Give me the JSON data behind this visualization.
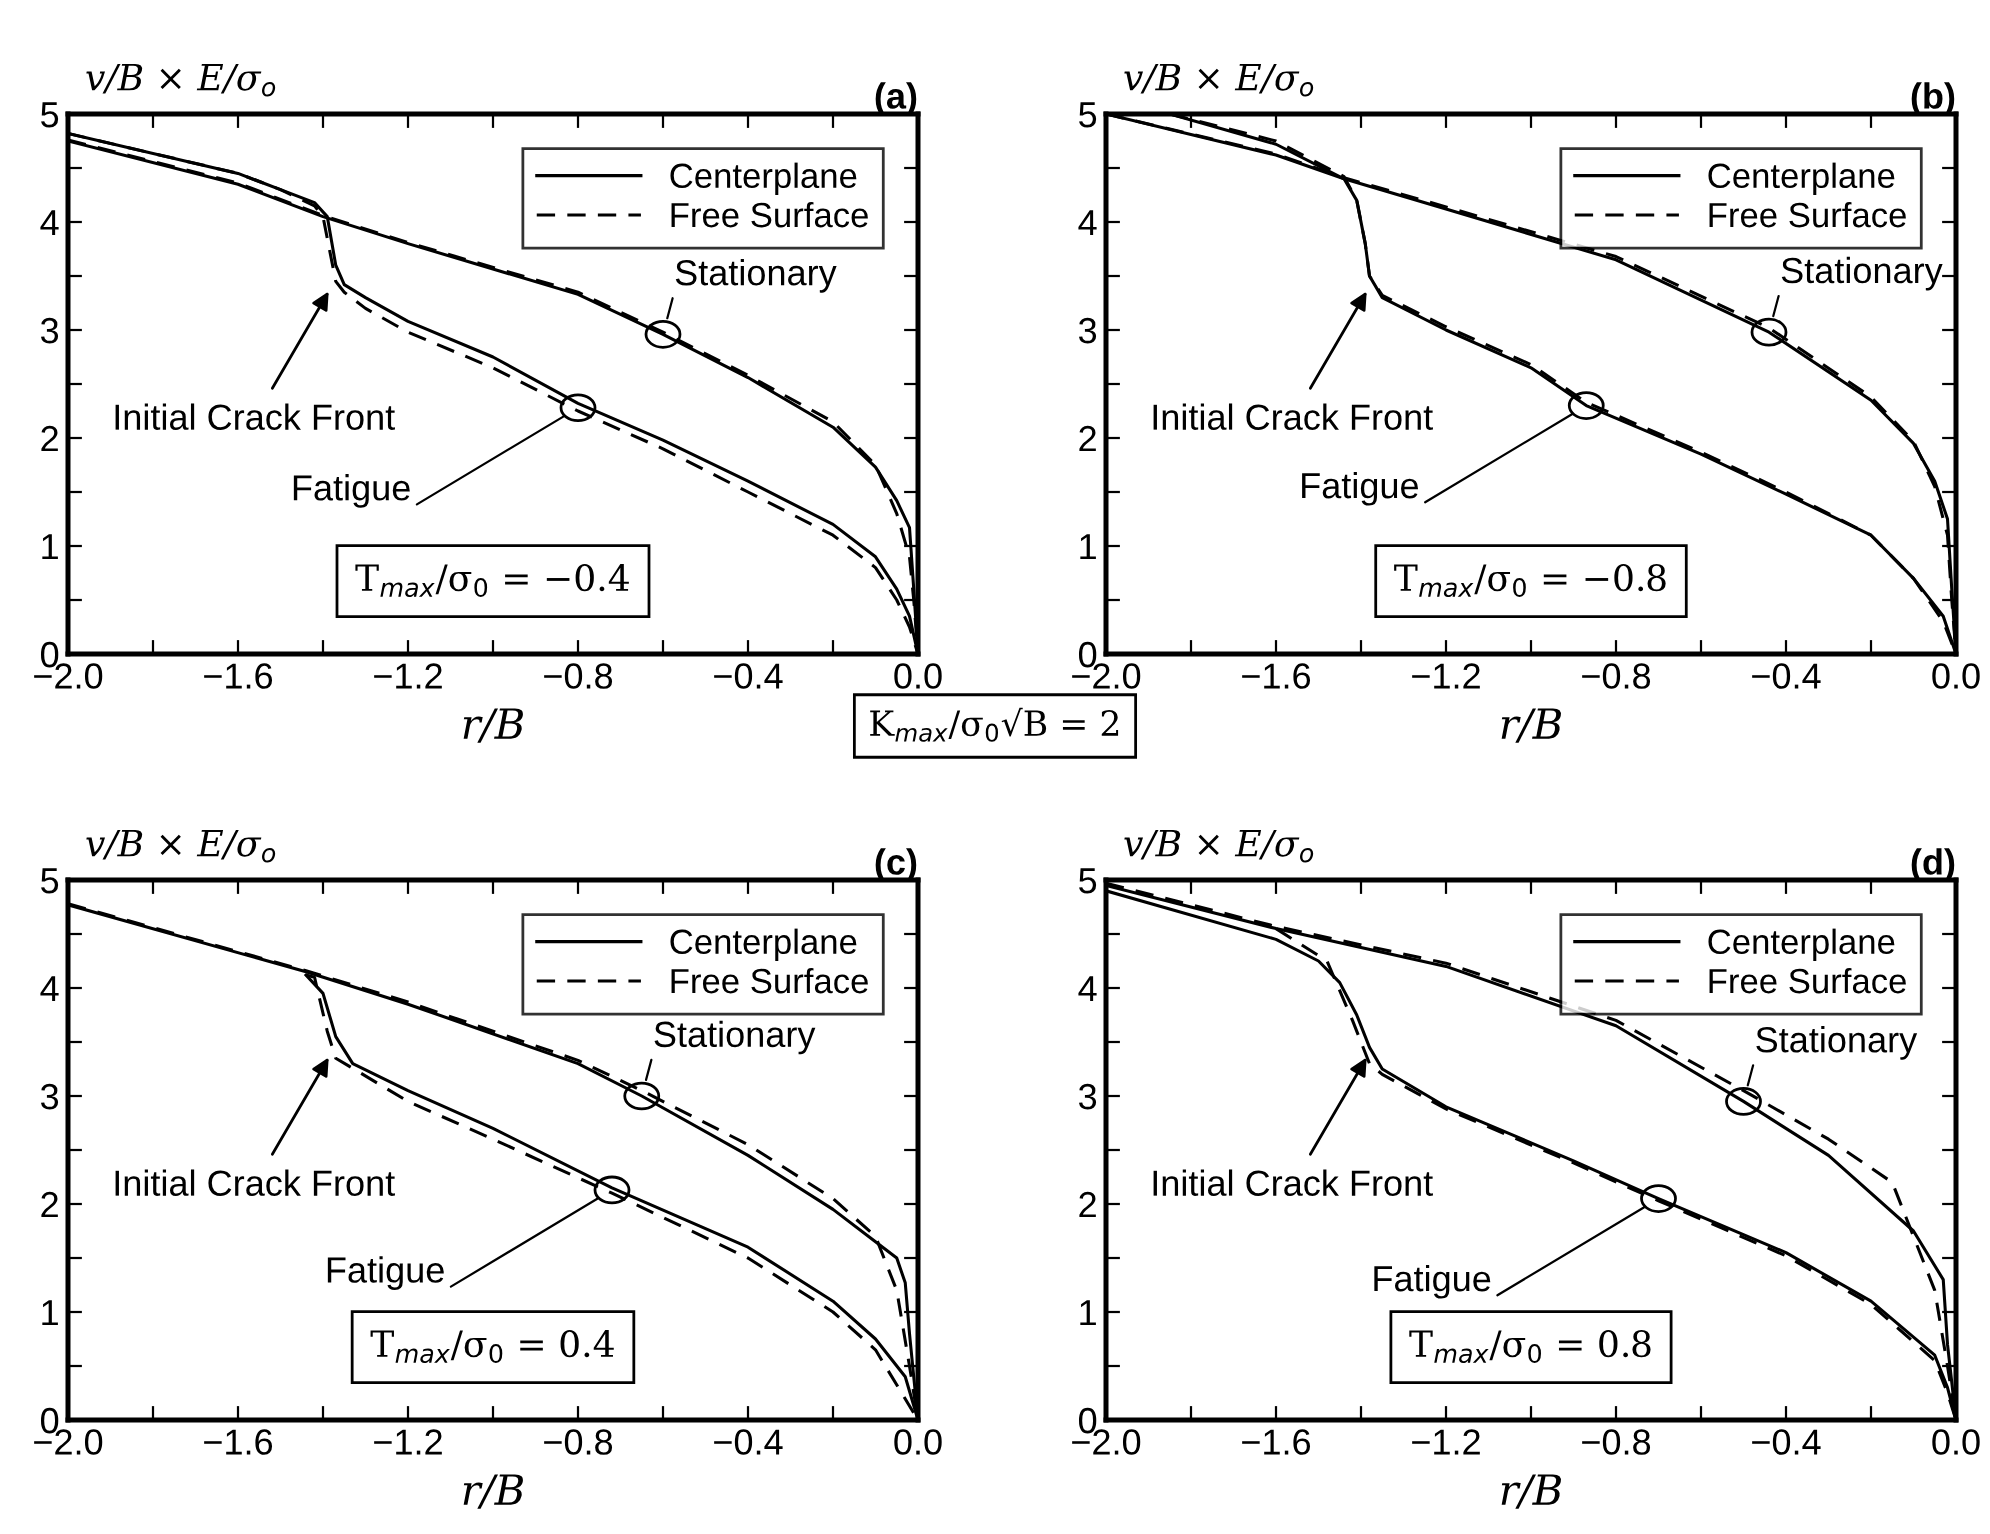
{
  "chart_data": [
    {
      "type": "line",
      "title": "(a)",
      "xlabel": "r/B",
      "ylabel": "v/B × E/σ$_{o}$",
      "legend": "top right",
      "grid": false,
      "xlim": [
        -2,
        0
      ],
      "ylim": [
        0,
        5
      ],
      "xticks": [
        {
          "value": -2,
          "label": "−2.0"
        },
        {
          "value": -1.8,
          "label": null
        },
        {
          "value": -1.6,
          "label": "−1.6"
        },
        {
          "value": -1.4,
          "label": null
        },
        {
          "value": -1.2,
          "label": "−1.2"
        },
        {
          "value": -1.0,
          "label": null
        },
        {
          "value": -0.8,
          "label": "−0.8"
        },
        {
          "value": -0.6,
          "label": null
        },
        {
          "value": -0.4,
          "label": "−0.4"
        },
        {
          "value": -0.2,
          "label": null
        },
        {
          "value": 0,
          "label": "0.0"
        }
      ],
      "yticks": [
        0,
        {
          "value": 0.5,
          "label": null
        },
        1,
        {
          "value": 1.5,
          "label": null
        },
        2,
        {
          "value": 2.5,
          "label": null
        },
        3,
        {
          "value": 3.5,
          "label": null
        },
        4,
        {
          "value": 4.5,
          "label": null
        },
        5
      ],
      "series": [
        {
          "name": "Centerplane",
          "color": "#000000",
          "line_style": "solid",
          "x": [
            -2,
            -1.6,
            -1.4,
            -1.2,
            -0.8,
            -0.6,
            -0.4,
            -0.2,
            -0.1,
            -0.05,
            -0.02,
            -0.01,
            0
          ],
          "values": [
            4.75,
            4.35,
            4.05,
            3.8,
            3.33,
            2.96,
            2.56,
            2.1,
            1.73,
            1.42,
            1.17,
            0.6,
            0
          ]
        },
        {
          "name": "Free Surface",
          "color": "#000000",
          "line_style": "dashed",
          "x": [
            -2,
            -1.6,
            -1.4,
            -1.2,
            -0.8,
            -0.6,
            -0.4,
            -0.2,
            -0.1,
            -0.05,
            -0.02,
            -0.01,
            0
          ],
          "values": [
            4.76,
            4.36,
            4.06,
            3.81,
            3.35,
            2.98,
            2.58,
            2.15,
            1.75,
            1.3,
            0.9,
            0.5,
            0
          ]
        },
        {
          "color": "#000000",
          "line_style": "solid",
          "x": [
            -2,
            -1.6,
            -1.5,
            -1.42,
            -1.39,
            -1.37,
            -1.35,
            -1.3,
            -1.2,
            -1.0,
            -0.8,
            -0.6,
            -0.4,
            -0.2,
            -0.1,
            -0.05,
            -0.02,
            0
          ],
          "values": [
            4.82,
            4.45,
            4.3,
            4.18,
            4.05,
            3.6,
            3.42,
            3.3,
            3.08,
            2.75,
            2.32,
            1.98,
            1.6,
            1.2,
            0.9,
            0.6,
            0.35,
            0
          ]
        },
        {
          "color": "#000000",
          "line_style": "dashed",
          "x": [
            -2,
            -1.6,
            -1.5,
            -1.42,
            -1.4,
            -1.37,
            -1.35,
            -1.3,
            -1.2,
            -1.0,
            -0.8,
            -0.6,
            -0.4,
            -0.2,
            -0.1,
            -0.05,
            -0.02,
            0
          ],
          "values": [
            4.82,
            4.45,
            4.3,
            4.15,
            4.05,
            3.45,
            3.35,
            3.2,
            2.98,
            2.65,
            2.25,
            1.9,
            1.5,
            1.1,
            0.8,
            0.5,
            0.25,
            0
          ]
        }
      ],
      "annotations": [
        {
          "text": "Stationary",
          "x": -0.6,
          "y": 2.96
        },
        {
          "text": "Fatigue",
          "x": -0.8,
          "y": 2.28
        },
        {
          "text": "Initial Crack Front",
          "x": -1.38,
          "y": 3.4
        },
        "T$_{max}$/σ$_{0}$ = −0.4",
        "K$_{max}$/σ$_{0}$√B = 2"
      ]
    },
    {
      "type": "line",
      "title": "(b)",
      "xlabel": "r/B",
      "ylabel": "v/B × E/σ$_{o}$",
      "legend": "top right",
      "grid": false,
      "xlim": [
        -2,
        0
      ],
      "ylim": [
        0,
        5
      ],
      "xticks": [
        {
          "value": -2,
          "label": "−2.0"
        },
        {
          "value": -1.8,
          "label": null
        },
        {
          "value": -1.6,
          "label": "−1.6"
        },
        {
          "value": -1.4,
          "label": null
        },
        {
          "value": -1.2,
          "label": "−1.2"
        },
        {
          "value": -1.0,
          "label": null
        },
        {
          "value": -0.8,
          "label": "−0.8"
        },
        {
          "value": -0.6,
          "label": null
        },
        {
          "value": -0.4,
          "label": "−0.4"
        },
        {
          "value": -0.2,
          "label": null
        },
        {
          "value": 0,
          "label": "0.0"
        }
      ],
      "yticks": [
        0,
        {
          "value": 0.5,
          "label": null
        },
        1,
        {
          "value": 1.5,
          "label": null
        },
        2,
        {
          "value": 2.5,
          "label": null
        },
        3,
        {
          "value": 3.5,
          "label": null
        },
        4,
        {
          "value": 4.5,
          "label": null
        },
        5
      ],
      "series": [
        {
          "name": "Centerplane",
          "color": "#000000",
          "line_style": "solid",
          "x": [
            -2,
            -1.6,
            -1.44,
            -1.2,
            -0.8,
            -0.44,
            -0.2,
            -0.1,
            -0.05,
            -0.02,
            -0.01,
            0
          ],
          "values": [
            5.0,
            4.62,
            4.4,
            4.12,
            3.65,
            2.98,
            2.35,
            1.95,
            1.6,
            1.25,
            0.6,
            0
          ]
        },
        {
          "name": "Free Surface",
          "color": "#000000",
          "line_style": "dashed",
          "x": [
            -2,
            -1.6,
            -1.44,
            -1.2,
            -0.8,
            -0.44,
            -0.2,
            -0.1,
            -0.05,
            -0.02,
            -0.01,
            0
          ],
          "values": [
            5.0,
            4.63,
            4.41,
            4.14,
            3.68,
            3.02,
            2.38,
            1.97,
            1.55,
            1.1,
            0.5,
            0
          ]
        },
        {
          "color": "#000000",
          "line_style": "solid",
          "x": [
            -1.85,
            -1.6,
            -1.44,
            -1.41,
            -1.39,
            -1.38,
            -1.35,
            -1.2,
            -1.0,
            -0.87,
            -0.6,
            -0.4,
            -0.2,
            -0.1,
            -0.03,
            0
          ],
          "values": [
            5.0,
            4.72,
            4.4,
            4.2,
            3.8,
            3.5,
            3.3,
            3.0,
            2.65,
            2.3,
            1.85,
            1.48,
            1.1,
            0.7,
            0.35,
            0
          ]
        },
        {
          "color": "#000000",
          "line_style": "dashed",
          "x": [
            -1.85,
            -1.6,
            -1.44,
            -1.41,
            -1.39,
            -1.38,
            -1.35,
            -1.2,
            -1.0,
            -0.87,
            -0.6,
            -0.4,
            -0.2,
            -0.1,
            -0.03,
            0
          ],
          "values": [
            5.0,
            4.75,
            4.42,
            4.2,
            3.8,
            3.5,
            3.32,
            3.03,
            2.68,
            2.33,
            1.87,
            1.5,
            1.1,
            0.7,
            0.3,
            0
          ]
        }
      ],
      "annotations": [
        {
          "text": "Stationary",
          "x": -0.44,
          "y": 2.98
        },
        {
          "text": "Fatigue",
          "x": -0.87,
          "y": 2.3
        },
        {
          "text": "Initial Crack Front",
          "x": -1.38,
          "y": 3.4
        },
        "T$_{max}$/σ$_{0}$ = −0.8"
      ]
    },
    {
      "type": "line",
      "title": "(c)",
      "xlabel": "r/B",
      "ylabel": "v/B × E/σ$_{o}$",
      "legend": "top right",
      "grid": false,
      "xlim": [
        -2,
        0
      ],
      "ylim": [
        0,
        5
      ],
      "xticks": [
        {
          "value": -2,
          "label": "−2.0"
        },
        {
          "value": -1.8,
          "label": null
        },
        {
          "value": -1.6,
          "label": "−1.6"
        },
        {
          "value": -1.4,
          "label": null
        },
        {
          "value": -1.2,
          "label": "−1.2"
        },
        {
          "value": -1.0,
          "label": null
        },
        {
          "value": -0.8,
          "label": "−0.8"
        },
        {
          "value": -0.6,
          "label": null
        },
        {
          "value": -0.4,
          "label": "−0.4"
        },
        {
          "value": -0.2,
          "label": null
        },
        {
          "value": 0,
          "label": "0.0"
        }
      ],
      "yticks": [
        0,
        {
          "value": 0.5,
          "label": null
        },
        1,
        {
          "value": 1.5,
          "label": null
        },
        2,
        {
          "value": 2.5,
          "label": null
        },
        3,
        {
          "value": 3.5,
          "label": null
        },
        4,
        {
          "value": 4.5,
          "label": null
        },
        5
      ],
      "series": [
        {
          "name": "Centerplane",
          "color": "#000000",
          "line_style": "solid",
          "x": [
            -2,
            -1.44,
            -1.2,
            -0.8,
            -0.65,
            -0.4,
            -0.2,
            -0.1,
            -0.05,
            -0.03,
            -0.02,
            0
          ],
          "values": [
            4.77,
            4.15,
            3.85,
            3.3,
            3.0,
            2.45,
            1.95,
            1.65,
            1.5,
            1.27,
            0.8,
            0
          ]
        },
        {
          "name": "Free Surface",
          "color": "#000000",
          "line_style": "dashed",
          "x": [
            -2,
            -1.44,
            -1.2,
            -0.8,
            -0.65,
            -0.4,
            -0.2,
            -0.1,
            -0.05,
            -0.02,
            0
          ],
          "values": [
            4.78,
            4.16,
            3.87,
            3.33,
            3.05,
            2.55,
            2.05,
            1.7,
            1.2,
            0.5,
            0
          ]
        },
        {
          "color": "#000000",
          "line_style": "solid",
          "x": [
            -1.44,
            -1.4,
            -1.37,
            -1.33,
            -1.2,
            -1.0,
            -0.72,
            -0.4,
            -0.2,
            -0.1,
            -0.03,
            0
          ],
          "values": [
            4.12,
            3.95,
            3.55,
            3.3,
            3.05,
            2.7,
            2.15,
            1.6,
            1.1,
            0.75,
            0.4,
            0
          ]
        },
        {
          "color": "#000000",
          "line_style": "dashed",
          "x": [
            -1.44,
            -1.42,
            -1.39,
            -1.37,
            -1.2,
            -1.0,
            -0.72,
            -0.4,
            -0.2,
            -0.1,
            0
          ],
          "values": [
            4.12,
            4.1,
            3.6,
            3.35,
            2.95,
            2.6,
            2.1,
            1.5,
            1.0,
            0.65,
            0
          ]
        }
      ],
      "annotations": [
        {
          "text": "Stationary",
          "x": -0.65,
          "y": 3.0
        },
        {
          "text": "Fatigue",
          "x": -0.72,
          "y": 2.13
        },
        {
          "text": "Initial Crack Front",
          "x": -1.38,
          "y": 3.4
        },
        "T$_{max}$/σ$_{0}$ = 0.4"
      ]
    },
    {
      "type": "line",
      "title": "(d)",
      "xlabel": "r/B",
      "ylabel": "v/B × E/σ$_{o}$",
      "legend": "top right",
      "grid": false,
      "xlim": [
        -2,
        0
      ],
      "ylim": [
        0,
        5
      ],
      "xticks": [
        {
          "value": -2,
          "label": "−2.0"
        },
        {
          "value": -1.8,
          "label": null
        },
        {
          "value": -1.6,
          "label": "−1.6"
        },
        {
          "value": -1.4,
          "label": null
        },
        {
          "value": -1.2,
          "label": "−1.2"
        },
        {
          "value": -1.0,
          "label": null
        },
        {
          "value": -0.8,
          "label": "−0.8"
        },
        {
          "value": -0.6,
          "label": null
        },
        {
          "value": -0.4,
          "label": "−0.4"
        },
        {
          "value": -0.2,
          "label": null
        },
        {
          "value": 0,
          "label": "0.0"
        }
      ],
      "yticks": [
        0,
        {
          "value": 0.5,
          "label": null
        },
        1,
        {
          "value": 1.5,
          "label": null
        },
        2,
        {
          "value": 2.5,
          "label": null
        },
        3,
        {
          "value": 3.5,
          "label": null
        },
        4,
        {
          "value": 4.5,
          "label": null
        },
        5
      ],
      "series": [
        {
          "name": "Centerplane",
          "color": "#000000",
          "line_style": "solid",
          "x": [
            -2,
            -1.6,
            -1.2,
            -0.8,
            -0.5,
            -0.3,
            -0.1,
            -0.03,
            -0.02,
            0
          ],
          "values": [
            4.95,
            4.55,
            4.2,
            3.65,
            2.95,
            2.45,
            1.75,
            1.3,
            0.7,
            0
          ]
        },
        {
          "name": "Free Surface",
          "color": "#000000",
          "line_style": "dashed",
          "x": [
            -2,
            -1.6,
            -1.2,
            -0.8,
            -0.5,
            -0.3,
            -0.15,
            -0.1,
            -0.05,
            -0.02,
            0
          ],
          "values": [
            4.97,
            4.57,
            4.23,
            3.7,
            3.05,
            2.6,
            2.2,
            1.7,
            1.2,
            0.5,
            0
          ]
        },
        {
          "color": "#000000",
          "line_style": "solid",
          "x": [
            -2,
            -1.6,
            -1.5,
            -1.45,
            -1.41,
            -1.38,
            -1.35,
            -1.2,
            -0.9,
            -0.7,
            -0.4,
            -0.2,
            -0.05,
            -0.02,
            0
          ],
          "values": [
            4.9,
            4.45,
            4.25,
            4.05,
            3.75,
            3.45,
            3.25,
            2.9,
            2.4,
            2.05,
            1.55,
            1.1,
            0.6,
            0.3,
            0
          ]
        },
        {
          "color": "#000000",
          "line_style": "dashed",
          "x": [
            -1.6,
            -1.48,
            -1.42,
            -1.38,
            -1.35,
            -1.2,
            -0.9,
            -0.7,
            -0.4,
            -0.2,
            -0.05,
            -0.02,
            0
          ],
          "values": [
            4.55,
            4.25,
            3.7,
            3.3,
            3.2,
            2.88,
            2.38,
            2.03,
            1.52,
            1.07,
            0.55,
            0.25,
            0
          ]
        }
      ],
      "annotations": [
        {
          "text": "Stationary",
          "x": -0.5,
          "y": 2.95
        },
        {
          "text": "Fatigue",
          "x": -0.7,
          "y": 2.05
        },
        {
          "text": "Initial Crack Front",
          "x": -1.38,
          "y": 3.4
        },
        "T$_{max}$/σ$_{0}$ = 0.8"
      ]
    }
  ]
}
